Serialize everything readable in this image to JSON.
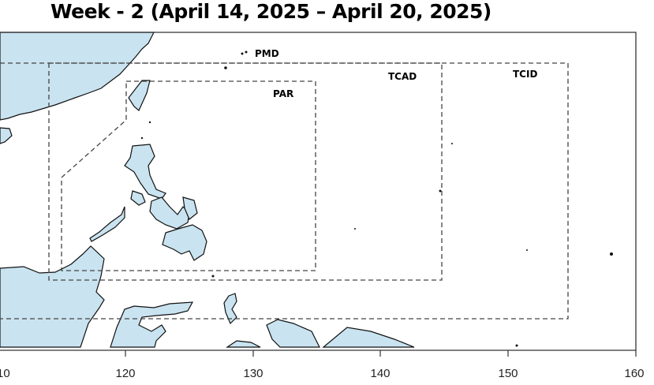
{
  "title": "Week - 2 (April 14, 2025 – April 20, 2025)",
  "map": {
    "land_color": "#c9e3f0",
    "regions": [
      {
        "label": "PMD",
        "lon": [
          110,
          155
        ],
        "lat": [
          0,
          27
        ]
      },
      {
        "label": "TCAD",
        "lon": [
          114,
          145
        ],
        "lat": [
          4,
          27
        ]
      },
      {
        "label": "TCID",
        "lon": [
          110,
          155
        ],
        "lat": [
          0,
          27
        ]
      },
      {
        "label": "PAR",
        "lon": [
          115,
          135
        ],
        "lat": [
          5,
          25
        ]
      }
    ],
    "x_ticks": [
      "10",
      "120",
      "130",
      "140",
      "150",
      "160"
    ]
  }
}
